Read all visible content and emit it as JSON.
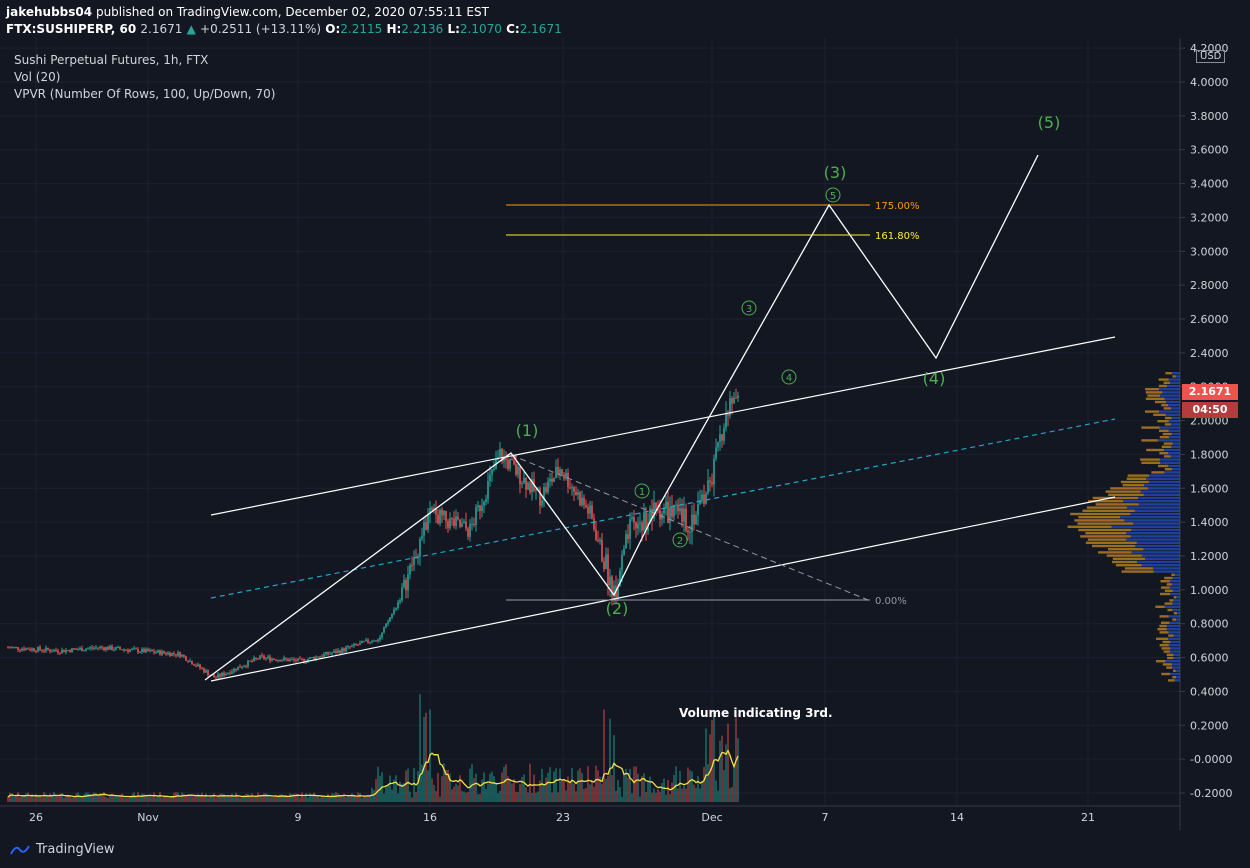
{
  "header": {
    "publisher": "jakehubbs04",
    "published_text": "published on TradingView.com, December 02, 2020 07:55:11 EST",
    "symbol": "FTX:SUSHIPERP, 60",
    "last": "2.1671",
    "change": "+0.2511 (+13.11%)",
    "open_label": "O:",
    "open": "2.2115",
    "high_label": "H:",
    "high": "2.2136",
    "low_label": "L:",
    "low": "2.1070",
    "close_label": "C:",
    "close": "2.1671"
  },
  "legend": {
    "title": "Sushi Perpetual Futures, 1h, FTX",
    "vol": "Vol (20)",
    "vpvr": "VPVR (Number Of Rows, 100, Up/Down, 70)"
  },
  "price_scale": {
    "currency": "USD",
    "current_price": "2.1671",
    "countdown": "04:50"
  },
  "footer": {
    "brand": "TradingView"
  },
  "colors": {
    "background": "#131722",
    "up": "#26a69a",
    "down": "#ef5350",
    "wave_label": "#4caf50",
    "fib_175": "#ff9800",
    "fib_161": "#ffeb3b",
    "vpvr_up": "#2962ff",
    "vpvr_down": "#f5a623"
  },
  "chart_data": {
    "type": "line",
    "y_axis": {
      "ticks": [
        "4.2000",
        "4.0000",
        "3.8000",
        "3.6000",
        "3.4000",
        "3.2000",
        "3.0000",
        "2.8000",
        "2.6000",
        "2.4000",
        "2.2000",
        "2.0000",
        "1.8000",
        "1.6000",
        "1.4000",
        "1.2000",
        "1.0000",
        "0.8000",
        "0.6000",
        "0.4000",
        "0.2000",
        "-0.0000",
        "-0.2000"
      ]
    },
    "x_axis": {
      "ticks": [
        "26",
        "Nov",
        "9",
        "16",
        "23",
        "Dec",
        "7",
        "14",
        "21"
      ]
    },
    "fib_levels": [
      {
        "label": "175.00%",
        "value": 3.27,
        "color": "#ff9800"
      },
      {
        "label": "161.80%",
        "value": 3.09,
        "color": "#ffeb3b"
      },
      {
        "label": "0.00%",
        "value": 0.94,
        "color": "#9598a1"
      }
    ],
    "wave_labels": [
      {
        "label": "(1)",
        "time": "Nov 20",
        "price": 1.97
      },
      {
        "label": "(2)",
        "time": "Nov 25",
        "price": 0.84
      },
      {
        "label": "(3)",
        "time": "Dec 7",
        "price": 3.44
      },
      {
        "label": "(4)",
        "time": "Dec 12",
        "price": 2.25
      },
      {
        "label": "(5)",
        "time": "Dec 18",
        "price": 3.78
      },
      {
        "label": "1",
        "time": "Nov 26",
        "price": 1.6
      },
      {
        "label": "2",
        "time": "Nov 28",
        "price": 1.26
      },
      {
        "label": "3",
        "time": "Dec 4",
        "price": 2.83
      },
      {
        "label": "4",
        "time": "Dec 5",
        "price": 2.25
      },
      {
        "label": "5",
        "time": "Dec 7",
        "price": 3.32
      }
    ],
    "annotation": "Volume indicating 3rd."
  }
}
